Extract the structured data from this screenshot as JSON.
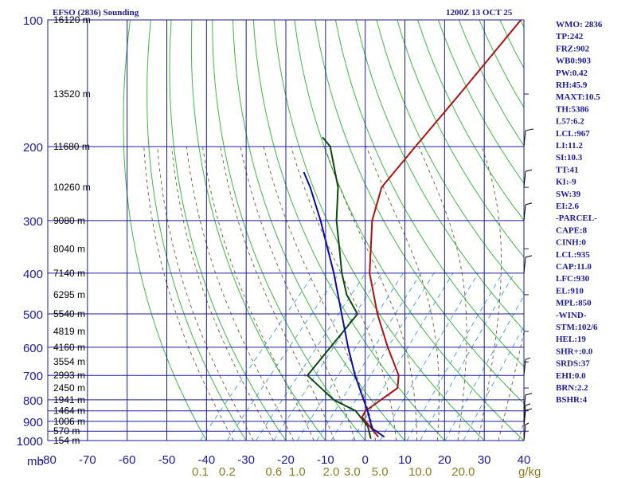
{
  "header": {
    "left_title": "EFSO (2836) Sounding",
    "right_title": "1200Z 13 OCT 25"
  },
  "colors": {
    "grid": "#1a1aa0",
    "dry_adiabat": "#3db83d",
    "moist_adiabat": "#6b5a2a",
    "mixing_ratio": "#3aa0d0",
    "temperature": "#b01010",
    "dewpoint": "#0b4a0b",
    "parcel": "#0a0aa8",
    "wind": "#000000",
    "text": "#1a1aa0"
  },
  "chart_data": {
    "type": "skew-t log-p",
    "title": "EFSO (2836) Sounding",
    "valid_time": "1200Z 13 OCT 25",
    "pressure_unit": "mb",
    "pressure_ticks": [
      100,
      200,
      300,
      400,
      500,
      600,
      700,
      800,
      900,
      1000
    ],
    "pressure_range": [
      1000,
      100
    ],
    "temperature_ticks": [
      -80,
      -70,
      -60,
      -50,
      -40,
      -30,
      -20,
      -10,
      0,
      10,
      20,
      30,
      40
    ],
    "temperature_range_at_1000mb": [
      -80,
      40
    ],
    "mixing_ratio_unit": "g/kg",
    "mixing_ratio_labels": [
      "0.1",
      "0.2",
      "0.6",
      "1.0",
      "2.0",
      "3.0",
      "5.0",
      "10.0",
      "20.0"
    ],
    "height_labels": [
      {
        "p": 100,
        "text": "16120 m"
      },
      {
        "p": 150,
        "text": "13520 m"
      },
      {
        "p": 200,
        "text": "11680 m"
      },
      {
        "p": 250,
        "text": "10260 m"
      },
      {
        "p": 300,
        "text": "9080 m"
      },
      {
        "p": 350,
        "text": "8040 m"
      },
      {
        "p": 400,
        "text": "7140 m"
      },
      {
        "p": 450,
        "text": "6295 m"
      },
      {
        "p": 500,
        "text": "5540 m"
      },
      {
        "p": 550,
        "text": "4819 m"
      },
      {
        "p": 600,
        "text": "4160 m"
      },
      {
        "p": 650,
        "text": "3554 m"
      },
      {
        "p": 700,
        "text": "2993 m"
      },
      {
        "p": 750,
        "text": "2450 m"
      },
      {
        "p": 800,
        "text": "1941 m"
      },
      {
        "p": 850,
        "text": "1464 m"
      },
      {
        "p": 900,
        "text": "1006 m"
      },
      {
        "p": 950,
        "text": "570 m"
      },
      {
        "p": 1000,
        "text": "154 m"
      }
    ],
    "series": [
      {
        "name": "Temperature",
        "points": [
          {
            "p": 980,
            "t": 2.5
          },
          {
            "p": 925,
            "t": -2
          },
          {
            "p": 880,
            "t": -6
          },
          {
            "p": 850,
            "t": -6.5
          },
          {
            "p": 750,
            "t": -3.5
          },
          {
            "p": 700,
            "t": -6
          },
          {
            "p": 600,
            "t": -15
          },
          {
            "p": 500,
            "t": -25
          },
          {
            "p": 400,
            "t": -36
          },
          {
            "p": 300,
            "t": -47
          },
          {
            "p": 250,
            "t": -52
          },
          {
            "p": 200,
            "t": -52.5
          },
          {
            "p": 150,
            "t": -53
          },
          {
            "p": 100,
            "t": -54
          }
        ]
      },
      {
        "name": "Dewpoint",
        "points": [
          {
            "p": 990,
            "t": 1
          },
          {
            "p": 925,
            "t": -2.5
          },
          {
            "p": 850,
            "t": -9
          },
          {
            "p": 800,
            "t": -17
          },
          {
            "p": 700,
            "t": -29
          },
          {
            "p": 500,
            "t": -30
          },
          {
            "p": 450,
            "t": -37
          },
          {
            "p": 400,
            "t": -43
          },
          {
            "p": 350,
            "t": -49
          },
          {
            "p": 300,
            "t": -56
          },
          {
            "p": 250,
            "t": -63
          },
          {
            "p": 200,
            "t": -74
          },
          {
            "p": 190,
            "t": -78
          }
        ]
      },
      {
        "name": "Parcel",
        "points": [
          {
            "p": 980,
            "t": 4
          },
          {
            "p": 935,
            "t": -1
          },
          {
            "p": 850,
            "t": -6
          },
          {
            "p": 700,
            "t": -17
          },
          {
            "p": 600,
            "t": -25
          },
          {
            "p": 500,
            "t": -34
          },
          {
            "p": 400,
            "t": -45
          },
          {
            "p": 300,
            "t": -60
          },
          {
            "p": 250,
            "t": -70
          },
          {
            "p": 230,
            "t": -75
          }
        ]
      }
    ],
    "wind_barbs": [
      {
        "p": 200
      },
      {
        "p": 250
      },
      {
        "p": 300
      },
      {
        "p": 400
      },
      {
        "p": 700
      },
      {
        "p": 850
      },
      {
        "p": 900
      },
      {
        "p": 925
      },
      {
        "p": 1000
      }
    ]
  },
  "indices": [
    "WMO: 2836",
    "TP:242",
    "FRZ:902",
    "WB0:903",
    "PW:0.42",
    "RH:45.9",
    "MAXT:10.5",
    "TH:5386",
    "L57:6.2",
    "LCL:967",
    "LI:11.2",
    "SI:10.3",
    "TT:41",
    "KI:-9",
    "SW:39",
    "EI:2.6",
    "-PARCEL-",
    "CAPE:8",
    "CINH:0",
    "LCL:935",
    "CAP:11.0",
    "LFC:930",
    "EL:910",
    "MPL:850",
    "-WIND-",
    "STM:102/6",
    "HEL:19",
    "SHR+:0.0",
    "SRDS:37",
    "EHI:0.0",
    "BRN:2.2",
    "BSHR:4"
  ]
}
